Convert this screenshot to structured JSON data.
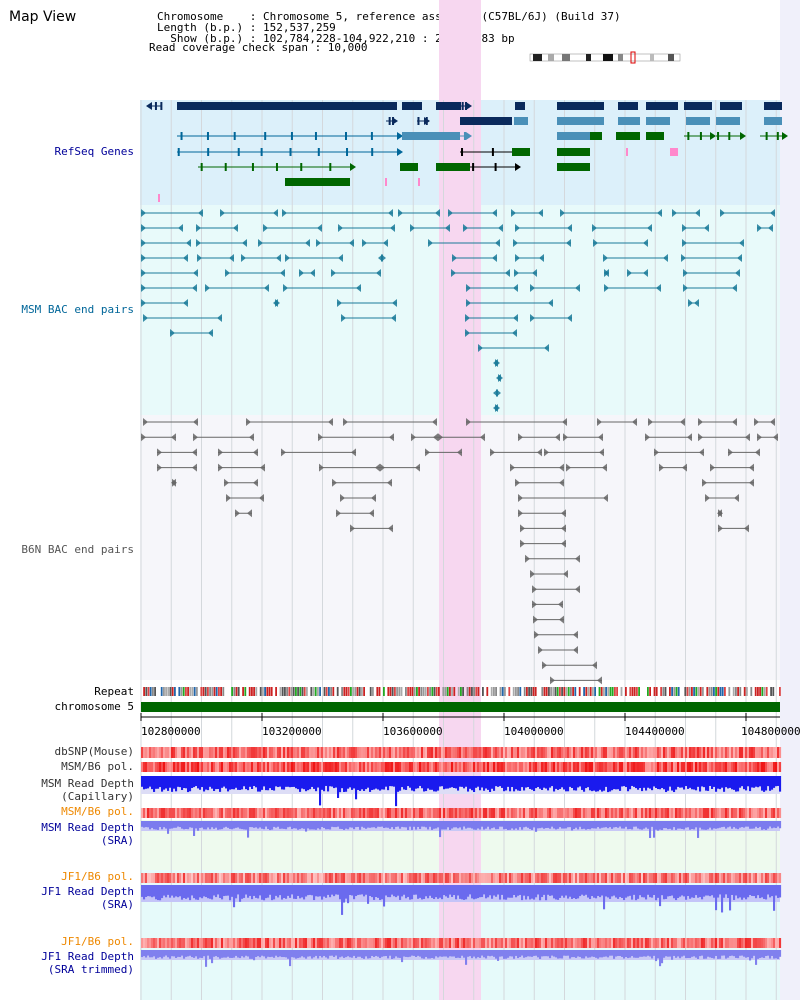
{
  "header": {
    "title": "Map View",
    "info_lines": [
      "Chromosome    : Chromosome 5, reference assembly (C57BL/6J) (Build 37)",
      "Length (b.p.) : 152,537,259",
      "  Show (b.p.) : 102,784,228-104,922,210 : 2,137,983 bp",
      "Read coverage check span : 10,000"
    ]
  },
  "tracks": {
    "refseq": "RefSeq Genes",
    "msm_bac": "MSM BAC end pairs",
    "b6n_bac": "B6N BAC end pairs",
    "repeat": "Repeat",
    "chromosome": "chromosome 5",
    "dbsnp": "dbSNP(Mouse)",
    "msm_b6_pol_1": "MSM/B6 pol.",
    "msm_depth_cap_1": "MSM Read Depth",
    "msm_depth_cap_2": "(Capillary)",
    "msm_b6_pol_2": "MSM/B6 pol.",
    "msm_depth_sra_1": "MSM Read Depth",
    "msm_depth_sra_2": "(SRA)",
    "jf1_b6_pol_1": "JF1/B6 pol.",
    "jf1_depth_sra_1": "JF1 Read Depth",
    "jf1_depth_sra_2": "(SRA)",
    "jf1_b6_pol_2": "JF1/B6 pol.",
    "jf1_depth_trim_1": "JF1 Read Depth",
    "jf1_depth_trim_2": "(SRA trimmed)"
  },
  "ruler": {
    "ticks": [
      "102800000",
      "103200000",
      "103600000",
      "104000000",
      "104400000",
      "104800000"
    ]
  },
  "colors": {
    "refseq_label": "#000099",
    "msm_label": "#006699",
    "b6n_label": "#555555",
    "orange_label": "#ee8800",
    "blue_label": "#000099",
    "gray_label": "#333333",
    "highlight": "#f7d7f0"
  }
}
